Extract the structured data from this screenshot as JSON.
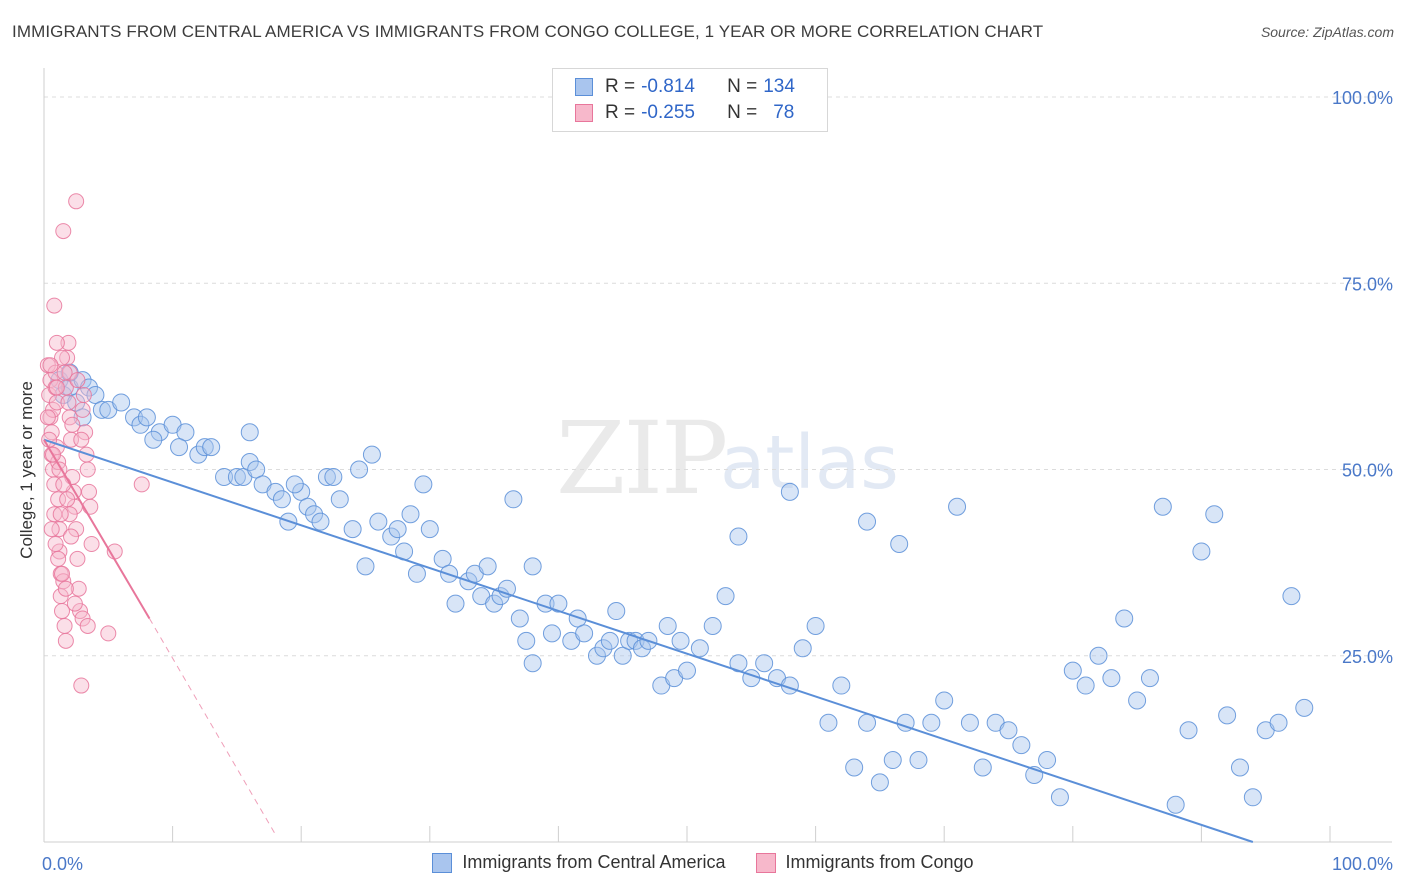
{
  "title": "IMMIGRANTS FROM CENTRAL AMERICA VS IMMIGRANTS FROM CONGO COLLEGE, 1 YEAR OR MORE CORRELATION CHART",
  "source": "Source: ZipAtlas.com",
  "watermark": {
    "zip": "ZIP",
    "atlas": "atlas"
  },
  "legend": {
    "r_label": "R =",
    "n_label": "N =",
    "rows": [
      {
        "r": "-0.814",
        "n": "134",
        "color": "#a9c5ee"
      },
      {
        "r": "-0.255",
        "n": "78",
        "color": "#f7b8cb"
      }
    ]
  },
  "chart_data": {
    "type": "scatter",
    "title": "IMMIGRANTS FROM CENTRAL AMERICA VS IMMIGRANTS FROM CONGO COLLEGE, 1 YEAR OR MORE CORRELATION CHART",
    "xlabel": "",
    "ylabel": "College, 1 year or more",
    "xlim": [
      0,
      100
    ],
    "ylim": [
      0,
      100
    ],
    "x_tick_labels": [
      "0.0%",
      "100.0%"
    ],
    "y_tick_labels": [
      "100.0%",
      "75.0%",
      "50.0%",
      "25.0%"
    ],
    "y_ticks": [
      100,
      75,
      50,
      25
    ],
    "grid": true,
    "legend_position": "bottom",
    "series": [
      {
        "name": "Immigrants from Central America",
        "color": "#5b8fd8",
        "fill": "#a9c5ee",
        "trend": {
          "x0": 0,
          "y0": 54,
          "x1": 94,
          "y1": 0,
          "style": "solid"
        },
        "points": [
          [
            1.2,
            62
          ],
          [
            1.5,
            60
          ],
          [
            2,
            61
          ],
          [
            2.5,
            59
          ],
          [
            3,
            62
          ],
          [
            3.5,
            61
          ],
          [
            4,
            60
          ],
          [
            4.5,
            58
          ],
          [
            5,
            58
          ],
          [
            6,
            59
          ],
          [
            7,
            57
          ],
          [
            7.5,
            56
          ],
          [
            8,
            57
          ],
          [
            9,
            55
          ],
          [
            10,
            56
          ],
          [
            11,
            55
          ],
          [
            12,
            52
          ],
          [
            12.5,
            53
          ],
          [
            13,
            53
          ],
          [
            14,
            49
          ],
          [
            15,
            49
          ],
          [
            15.5,
            49
          ],
          [
            16,
            51
          ],
          [
            16.5,
            50
          ],
          [
            17,
            48
          ],
          [
            18,
            47
          ],
          [
            18.5,
            46
          ],
          [
            19,
            43
          ],
          [
            20,
            47
          ],
          [
            20.5,
            45
          ],
          [
            21,
            44
          ],
          [
            21.5,
            43
          ],
          [
            22,
            49
          ],
          [
            22.5,
            49
          ],
          [
            23,
            46
          ],
          [
            24,
            42
          ],
          [
            25,
            37
          ],
          [
            25.5,
            52
          ],
          [
            26,
            43
          ],
          [
            27,
            41
          ],
          [
            27.5,
            42
          ],
          [
            28,
            39
          ],
          [
            28.5,
            44
          ],
          [
            29,
            36
          ],
          [
            30,
            42
          ],
          [
            31,
            38
          ],
          [
            31.5,
            36
          ],
          [
            32,
            32
          ],
          [
            33,
            35
          ],
          [
            33.5,
            36
          ],
          [
            34,
            33
          ],
          [
            34.5,
            37
          ],
          [
            35,
            32
          ],
          [
            35.5,
            33
          ],
          [
            36,
            34
          ],
          [
            37,
            30
          ],
          [
            37.5,
            27
          ],
          [
            38,
            24
          ],
          [
            39,
            32
          ],
          [
            39.5,
            28
          ],
          [
            40,
            32
          ],
          [
            41,
            27
          ],
          [
            41.5,
            30
          ],
          [
            42,
            28
          ],
          [
            43,
            25
          ],
          [
            43.5,
            26
          ],
          [
            44,
            27
          ],
          [
            45,
            25
          ],
          [
            45.5,
            27
          ],
          [
            46,
            27
          ],
          [
            46.5,
            26
          ],
          [
            47,
            27
          ],
          [
            48,
            21
          ],
          [
            49,
            22
          ],
          [
            49.5,
            27
          ],
          [
            50,
            23
          ],
          [
            51,
            26
          ],
          [
            52,
            29
          ],
          [
            53,
            33
          ],
          [
            54,
            24
          ],
          [
            55,
            22
          ],
          [
            56,
            24
          ],
          [
            57,
            22
          ],
          [
            58,
            21
          ],
          [
            59,
            26
          ],
          [
            60,
            29
          ],
          [
            61,
            16
          ],
          [
            62,
            21
          ],
          [
            63,
            10
          ],
          [
            64,
            16
          ],
          [
            65,
            8
          ],
          [
            66,
            11
          ],
          [
            67,
            16
          ],
          [
            68,
            11
          ],
          [
            69,
            16
          ],
          [
            70,
            19
          ],
          [
            71,
            45
          ],
          [
            72,
            16
          ],
          [
            73,
            10
          ],
          [
            74,
            16
          ],
          [
            75,
            15
          ],
          [
            76,
            13
          ],
          [
            77,
            9
          ],
          [
            78,
            11
          ],
          [
            79,
            6
          ],
          [
            80,
            23
          ],
          [
            81,
            21
          ],
          [
            82,
            25
          ],
          [
            83,
            22
          ],
          [
            84,
            30
          ],
          [
            85,
            19
          ],
          [
            86,
            22
          ],
          [
            87,
            45
          ],
          [
            88,
            5
          ],
          [
            89,
            15
          ],
          [
            90,
            39
          ],
          [
            91,
            44
          ],
          [
            92,
            17
          ],
          [
            93,
            10
          ],
          [
            94,
            6
          ],
          [
            95,
            15
          ],
          [
            96,
            16
          ],
          [
            97,
            33
          ],
          [
            98,
            18
          ],
          [
            66.5,
            40
          ],
          [
            64,
            43
          ],
          [
            54,
            41
          ],
          [
            38,
            37
          ],
          [
            29.5,
            48
          ],
          [
            44.5,
            31
          ],
          [
            58,
            47
          ],
          [
            48.5,
            29
          ],
          [
            36.5,
            46
          ],
          [
            24.5,
            50
          ],
          [
            19.5,
            48
          ],
          [
            16,
            55
          ],
          [
            8.5,
            54
          ],
          [
            3,
            57
          ],
          [
            2,
            63
          ],
          [
            10.5,
            53
          ]
        ]
      },
      {
        "name": "Immigrants from Congo",
        "color": "#e8769b",
        "fill": "#f7b8cb",
        "trend": {
          "x0": 0,
          "y0": 54,
          "x1": 8.2,
          "y1": 30,
          "style": "solid"
        },
        "trend_ext": {
          "x0": 8.2,
          "y0": 30,
          "x1": 18,
          "y1": 1,
          "style": "dashed"
        },
        "points": [
          [
            0.3,
            64
          ],
          [
            0.4,
            60
          ],
          [
            0.5,
            62
          ],
          [
            0.5,
            57
          ],
          [
            0.6,
            55
          ],
          [
            0.6,
            52
          ],
          [
            0.7,
            58
          ],
          [
            0.7,
            50
          ],
          [
            0.8,
            48
          ],
          [
            0.8,
            44
          ],
          [
            0.9,
            63
          ],
          [
            0.9,
            61
          ],
          [
            1.0,
            59
          ],
          [
            1.0,
            53
          ],
          [
            1.1,
            51
          ],
          [
            1.1,
            46
          ],
          [
            1.2,
            42
          ],
          [
            1.2,
            39
          ],
          [
            1.3,
            36
          ],
          [
            1.3,
            33
          ],
          [
            1.4,
            31
          ],
          [
            1.5,
            35
          ],
          [
            1.6,
            29
          ],
          [
            1.7,
            27
          ],
          [
            1.8,
            65
          ],
          [
            1.9,
            67
          ],
          [
            2.0,
            63
          ],
          [
            2.0,
            57
          ],
          [
            2.1,
            54
          ],
          [
            2.2,
            49
          ],
          [
            2.3,
            47
          ],
          [
            2.4,
            45
          ],
          [
            2.5,
            42
          ],
          [
            2.6,
            38
          ],
          [
            2.7,
            34
          ],
          [
            2.8,
            31
          ],
          [
            2.9,
            21
          ],
          [
            3.0,
            58
          ],
          [
            3.1,
            60
          ],
          [
            3.2,
            55
          ],
          [
            3.3,
            52
          ],
          [
            3.4,
            50
          ],
          [
            3.5,
            47
          ],
          [
            3.6,
            45
          ],
          [
            3.7,
            40
          ],
          [
            1.5,
            82
          ],
          [
            2.5,
            86
          ],
          [
            0.8,
            72
          ],
          [
            1.0,
            67
          ],
          [
            1.4,
            65
          ],
          [
            1.6,
            63
          ],
          [
            1.7,
            61
          ],
          [
            1.9,
            59
          ],
          [
            2.2,
            56
          ],
          [
            0.4,
            54
          ],
          [
            0.7,
            52
          ],
          [
            1.2,
            50
          ],
          [
            1.5,
            48
          ],
          [
            1.8,
            46
          ],
          [
            2.0,
            44
          ],
          [
            0.6,
            42
          ],
          [
            0.9,
            40
          ],
          [
            1.1,
            38
          ],
          [
            1.4,
            36
          ],
          [
            1.7,
            34
          ],
          [
            2.4,
            32
          ],
          [
            3.0,
            30
          ],
          [
            3.4,
            29
          ],
          [
            5.0,
            28
          ],
          [
            5.5,
            39
          ],
          [
            7.6,
            48
          ],
          [
            2.6,
            62
          ],
          [
            0.5,
            64
          ],
          [
            1.3,
            44
          ],
          [
            2.1,
            41
          ],
          [
            0.3,
            57
          ],
          [
            1.0,
            61
          ],
          [
            2.9,
            54
          ]
        ]
      }
    ]
  },
  "bottom_legend": [
    {
      "label": "Immigrants from Central America",
      "color": "#a9c5ee",
      "border": "#5b8fd8"
    },
    {
      "label": "Immigrants from Congo",
      "color": "#f7b8cb",
      "border": "#e8769b"
    }
  ]
}
